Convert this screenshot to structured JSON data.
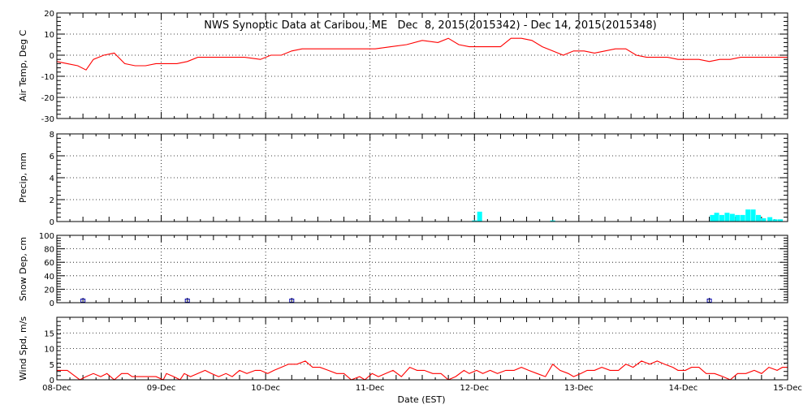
{
  "chart_data": {
    "type": "multi-panel time series",
    "title": "NWS Synoptic Data at Caribou, ME   Dec  8, 2015(2015342) - Dec 14, 2015(2015348)",
    "xlabel": "Date (EST)",
    "x_ticks": [
      "08-Dec",
      "09-Dec",
      "10-Dec",
      "11-Dec",
      "12-Dec",
      "13-Dec",
      "14-Dec",
      "15-Dec"
    ],
    "x_range_days": [
      0,
      7
    ],
    "grid": "dotted vertical lines at day boundaries, dotted horizontal at major ticks",
    "panels": [
      {
        "name": "air_temp",
        "type": "line",
        "ylabel": "Air Temp, Deg C",
        "ylim": [
          -30,
          20
        ],
        "yticks": [
          20,
          10,
          0,
          -10,
          -20,
          -30
        ],
        "color": "#ff0000",
        "x_days": [
          0,
          0.1,
          0.2,
          0.28,
          0.35,
          0.45,
          0.55,
          0.65,
          0.75,
          0.85,
          0.95,
          1.05,
          1.15,
          1.25,
          1.35,
          1.45,
          1.55,
          1.65,
          1.8,
          1.95,
          2.05,
          2.15,
          2.25,
          2.35,
          2.45,
          2.6,
          2.75,
          2.9,
          3.05,
          3.2,
          3.35,
          3.5,
          3.65,
          3.75,
          3.85,
          3.95,
          4.05,
          4.15,
          4.25,
          4.35,
          4.45,
          4.55,
          4.65,
          4.75,
          4.85,
          4.95,
          5.05,
          5.15,
          5.25,
          5.35,
          5.45,
          5.55,
          5.65,
          5.75,
          5.85,
          5.95,
          6.05,
          6.15,
          6.25,
          6.35,
          6.45,
          6.55,
          6.65,
          6.75,
          6.85,
          7.0
        ],
        "values": [
          -3,
          -4,
          -5,
          -7,
          -2,
          0,
          1,
          -4,
          -5,
          -5,
          -4,
          -4,
          -4,
          -3,
          -1,
          -1,
          -1,
          -1,
          -1,
          -2,
          0,
          0,
          2,
          3,
          3,
          3,
          3,
          3,
          3,
          4,
          5,
          7,
          6,
          8,
          5,
          4,
          4,
          4,
          4,
          8,
          8,
          7,
          4,
          2,
          0,
          2,
          2,
          1,
          2,
          3,
          3,
          0,
          -1,
          -1,
          -1,
          -2,
          -2,
          -2,
          -3,
          -2,
          -2,
          -1,
          -1,
          -1,
          -1,
          -1
        ]
      },
      {
        "name": "precip",
        "type": "bar",
        "ylabel": "Precip, mm",
        "ylim": [
          0,
          8
        ],
        "yticks": [
          8,
          6,
          4,
          2,
          0
        ],
        "color": "#00ffff",
        "x_days": [
          4.0,
          4.05,
          4.75,
          6.28,
          6.32,
          6.37,
          6.42,
          6.47,
          6.52,
          6.57,
          6.62,
          6.67,
          6.72,
          6.77,
          6.83,
          6.88,
          6.93
        ],
        "values": [
          0.1,
          0.9,
          0.1,
          0.6,
          0.8,
          0.6,
          0.8,
          0.7,
          0.6,
          0.6,
          1.1,
          1.1,
          0.6,
          0.3,
          0.4,
          0.2,
          0.2
        ]
      },
      {
        "name": "snow_depth",
        "type": "scatter",
        "ylabel": "Snow Dep, cm",
        "ylim": [
          0,
          100
        ],
        "yticks": [
          100,
          80,
          60,
          40,
          20,
          0
        ],
        "color": "#0000aa",
        "x_days": [
          0.25,
          1.25,
          2.25,
          6.25
        ],
        "values": [
          0,
          0,
          0,
          0
        ]
      },
      {
        "name": "wind_speed",
        "type": "line",
        "ylabel": "Wind Spd, m/s",
        "ylim": [
          0,
          20
        ],
        "yticks": [
          15,
          10,
          5,
          0
        ],
        "color": "#ff0000",
        "x_days": [
          0,
          0.1,
          0.18,
          0.22,
          0.28,
          0.35,
          0.42,
          0.48,
          0.55,
          0.62,
          0.68,
          0.72,
          0.78,
          0.85,
          0.95,
          1.02,
          1.05,
          1.12,
          1.18,
          1.22,
          1.28,
          1.35,
          1.42,
          1.48,
          1.55,
          1.62,
          1.68,
          1.75,
          1.82,
          1.9,
          1.95,
          2.02,
          2.08,
          2.15,
          2.22,
          2.3,
          2.38,
          2.45,
          2.52,
          2.6,
          2.68,
          2.75,
          2.82,
          2.9,
          2.95,
          3.02,
          3.08,
          3.15,
          3.22,
          3.3,
          3.38,
          3.45,
          3.52,
          3.6,
          3.68,
          3.75,
          3.82,
          3.9,
          3.95,
          4.02,
          4.08,
          4.15,
          4.22,
          4.3,
          4.38,
          4.45,
          4.52,
          4.6,
          4.68,
          4.75,
          4.82,
          4.9,
          4.95,
          5.02,
          5.08,
          5.15,
          5.22,
          5.3,
          5.38,
          5.45,
          5.52,
          5.6,
          5.68,
          5.75,
          5.82,
          5.9,
          5.95,
          6.02,
          6.08,
          6.15,
          6.22,
          6.3,
          6.38,
          6.45,
          6.52,
          6.6,
          6.68,
          6.75,
          6.82,
          6.9,
          6.95,
          7.0
        ],
        "values": [
          3,
          3,
          1,
          0,
          1,
          2,
          1,
          2,
          0,
          2,
          2,
          1,
          1,
          1,
          1,
          0,
          2,
          1,
          0,
          2,
          1,
          2,
          3,
          2,
          1,
          2,
          1,
          3,
          2,
          3,
          3,
          2,
          3,
          4,
          5,
          5,
          6,
          4,
          4,
          3,
          2,
          2,
          0,
          1,
          0,
          2,
          1,
          2,
          3,
          1,
          4,
          3,
          3,
          2,
          2,
          0,
          1,
          3,
          2,
          3,
          2,
          3,
          2,
          3,
          3,
          4,
          3,
          2,
          1,
          5,
          3,
          2,
          1,
          2,
          3,
          3,
          4,
          3,
          3,
          5,
          4,
          6,
          5,
          6,
          5,
          4,
          3,
          3,
          4,
          4,
          2,
          2,
          1,
          0,
          2,
          2,
          3,
          2,
          4,
          3,
          4,
          4
        ]
      }
    ]
  }
}
